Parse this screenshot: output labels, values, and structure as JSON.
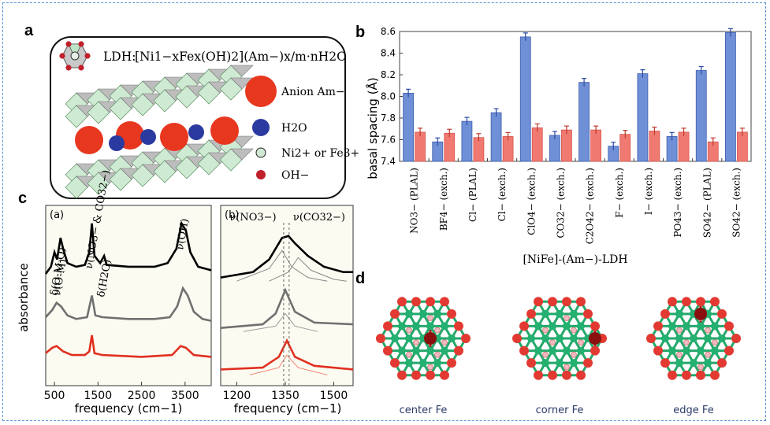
{
  "panels": {
    "a": "a",
    "b": "b",
    "c": "c",
    "d": "d"
  },
  "panel_a": {
    "formula_prefix": "LDH:",
    "formula": "[Ni1−xFex(OH)2](Am−)x/m·nH2O",
    "legend": [
      {
        "label": "Anion Am−",
        "color": "#e8371f"
      },
      {
        "label": "H2O",
        "color": "#2a3aa0"
      },
      {
        "label": "Ni2+ or Fe3+",
        "color": "#cfe8d2"
      },
      {
        "label": "OH−",
        "color": "#c0202a"
      }
    ]
  },
  "chart_data": [
    {
      "id": "b",
      "type": "bar",
      "ylabel": "basal spacing (Å)",
      "xlabel": "[NiFe]-(Am−)-LDH",
      "ylim": [
        7.4,
        8.6
      ],
      "yticks": [
        "7.4",
        "7.6",
        "7.8",
        "8.0",
        "8.2",
        "8.4",
        "8.6"
      ],
      "categories": [
        "NO3− (PLAL)",
        "BF4− (exch.)",
        "Cl− (PLAL)",
        "Cl− (exch.)",
        "ClO4− (exch.)",
        "CO32− (exch.)",
        "C2O42− (exch.)",
        "F− (exch.)",
        "I− (exch.)",
        "PO43− (exch.)",
        "SO42− (PLAL)",
        "SO42− (exch.)"
      ],
      "series": [
        {
          "color": "#6f8fd6",
          "values": [
            8.03,
            7.58,
            7.77,
            7.85,
            8.55,
            7.64,
            8.13,
            7.54,
            8.21,
            7.63,
            8.24,
            8.59
          ]
        },
        {
          "color": "#f07a72",
          "values": [
            7.67,
            7.66,
            7.62,
            7.63,
            7.71,
            7.69,
            7.69,
            7.65,
            7.68,
            7.67,
            7.58,
            7.67
          ]
        }
      ]
    },
    {
      "id": "c-a",
      "type": "line",
      "subpanel": "(a)",
      "ylabel": "absorbance",
      "xlabel": "frequency (cm−1)",
      "xlim": [
        300,
        4100
      ],
      "xticks": [
        "500",
        "1500",
        "2500",
        "3500"
      ],
      "annotations": [
        "δ(O-M-O)",
        "ν(O-M)",
        "ν(NO3− & CO32−)",
        "δ(H2O)",
        "ν(OH)"
      ],
      "series": [
        {
          "color": "#000000",
          "points": [
            [
              300,
              0.62
            ],
            [
              420,
              0.66
            ],
            [
              500,
              0.74
            ],
            [
              560,
              0.7
            ],
            [
              640,
              0.82
            ],
            [
              700,
              0.76
            ],
            [
              800,
              0.68
            ],
            [
              1000,
              0.66
            ],
            [
              1200,
              0.67
            ],
            [
              1300,
              0.74
            ],
            [
              1360,
              0.9
            ],
            [
              1420,
              0.72
            ],
            [
              1550,
              0.68
            ],
            [
              1640,
              0.72
            ],
            [
              1700,
              0.67
            ],
            [
              2200,
              0.66
            ],
            [
              2800,
              0.66
            ],
            [
              3100,
              0.68
            ],
            [
              3300,
              0.76
            ],
            [
              3420,
              0.9
            ],
            [
              3520,
              0.86
            ],
            [
              3620,
              0.74
            ],
            [
              3800,
              0.66
            ],
            [
              4100,
              0.64
            ]
          ]
        },
        {
          "color": "#707070",
          "points": [
            [
              300,
              0.38
            ],
            [
              450,
              0.42
            ],
            [
              550,
              0.46
            ],
            [
              650,
              0.44
            ],
            [
              800,
              0.39
            ],
            [
              1000,
              0.37
            ],
            [
              1250,
              0.38
            ],
            [
              1360,
              0.5
            ],
            [
              1440,
              0.39
            ],
            [
              1600,
              0.38
            ],
            [
              2200,
              0.37
            ],
            [
              2800,
              0.37
            ],
            [
              3150,
              0.38
            ],
            [
              3320,
              0.44
            ],
            [
              3450,
              0.54
            ],
            [
              3560,
              0.5
            ],
            [
              3700,
              0.41
            ],
            [
              3900,
              0.37
            ],
            [
              4100,
              0.36
            ]
          ]
        },
        {
          "color": "#e03020",
          "points": [
            [
              300,
              0.18
            ],
            [
              450,
              0.21
            ],
            [
              550,
              0.22
            ],
            [
              700,
              0.19
            ],
            [
              900,
              0.17
            ],
            [
              1200,
              0.17
            ],
            [
              1300,
              0.19
            ],
            [
              1360,
              0.28
            ],
            [
              1420,
              0.18
            ],
            [
              1600,
              0.17
            ],
            [
              2500,
              0.16
            ],
            [
              3200,
              0.17
            ],
            [
              3400,
              0.22
            ],
            [
              3520,
              0.21
            ],
            [
              3700,
              0.17
            ],
            [
              4100,
              0.16
            ]
          ]
        }
      ]
    },
    {
      "id": "c-b",
      "type": "line",
      "subpanel": "(b)",
      "xlabel": "frequency (cm−1)",
      "xlim": [
        1150,
        1560
      ],
      "xticks": [
        "1200",
        "1350",
        "1500"
      ],
      "annotations": [
        "ν(NO3−)",
        "ν(CO32−)"
      ],
      "series": [
        {
          "color": "#000000",
          "points": [
            [
              1150,
              0.6
            ],
            [
              1250,
              0.63
            ],
            [
              1300,
              0.7
            ],
            [
              1340,
              0.82
            ],
            [
              1360,
              0.83
            ],
            [
              1380,
              0.79
            ],
            [
              1420,
              0.72
            ],
            [
              1470,
              0.66
            ],
            [
              1530,
              0.63
            ],
            [
              1560,
              0.63
            ]
          ]
        },
        {
          "color": "#888888",
          "points": [
            [
              1200,
              0.58
            ],
            [
              1300,
              0.65
            ],
            [
              1340,
              0.75
            ],
            [
              1370,
              0.66
            ],
            [
              1420,
              0.6
            ],
            [
              1480,
              0.58
            ]
          ]
        },
        {
          "color": "#888888",
          "points": [
            [
              1300,
              0.58
            ],
            [
              1360,
              0.63
            ],
            [
              1390,
              0.71
            ],
            [
              1430,
              0.64
            ],
            [
              1500,
              0.59
            ],
            [
              1540,
              0.58
            ]
          ]
        },
        {
          "color": "#707070",
          "points": [
            [
              1150,
              0.32
            ],
            [
              1280,
              0.34
            ],
            [
              1320,
              0.4
            ],
            [
              1350,
              0.53
            ],
            [
              1380,
              0.41
            ],
            [
              1440,
              0.35
            ],
            [
              1560,
              0.34
            ]
          ]
        },
        {
          "color": "#999999",
          "points": [
            [
              1220,
              0.3
            ],
            [
              1320,
              0.33
            ],
            [
              1350,
              0.4
            ],
            [
              1380,
              0.33
            ],
            [
              1450,
              0.3
            ]
          ]
        },
        {
          "color": "#e03020",
          "points": [
            [
              1150,
              0.09
            ],
            [
              1280,
              0.1
            ],
            [
              1330,
              0.16
            ],
            [
              1355,
              0.25
            ],
            [
              1380,
              0.16
            ],
            [
              1440,
              0.11
            ],
            [
              1560,
              0.09
            ]
          ]
        },
        {
          "color": "#f08070",
          "points": [
            [
              1240,
              0.06
            ],
            [
              1330,
              0.1
            ],
            [
              1355,
              0.17
            ],
            [
              1390,
              0.1
            ],
            [
              1480,
              0.06
            ]
          ]
        }
      ]
    }
  ],
  "panel_d": {
    "captions": [
      "center Fe",
      "corner Fe",
      "edge Fe"
    ]
  }
}
